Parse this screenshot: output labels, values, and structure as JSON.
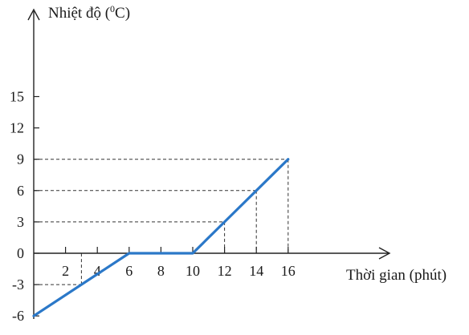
{
  "chart_data": {
    "type": "line",
    "xlabel": "Thời gian (phút)",
    "ylabel_prefix": "Nhiệt độ (",
    "ylabel_sup": "0",
    "ylabel_suffix": "C)",
    "x_ticks": [
      2,
      4,
      6,
      8,
      10,
      12,
      14,
      16
    ],
    "y_ticks": [
      -6,
      -3,
      0,
      3,
      6,
      9,
      12,
      15
    ],
    "xlim": [
      0,
      22
    ],
    "ylim": [
      -6,
      21
    ],
    "series": [
      {
        "x": [
          0,
          6,
          10,
          16
        ],
        "y": [
          -6,
          0,
          0,
          9
        ],
        "color": "#2b78c8"
      }
    ],
    "guides": [
      {
        "x": 3,
        "y": -3
      },
      {
        "x": 12,
        "y": 3
      },
      {
        "x": 14,
        "y": 6
      },
      {
        "x": 16,
        "y": 9
      }
    ],
    "grid": false
  }
}
